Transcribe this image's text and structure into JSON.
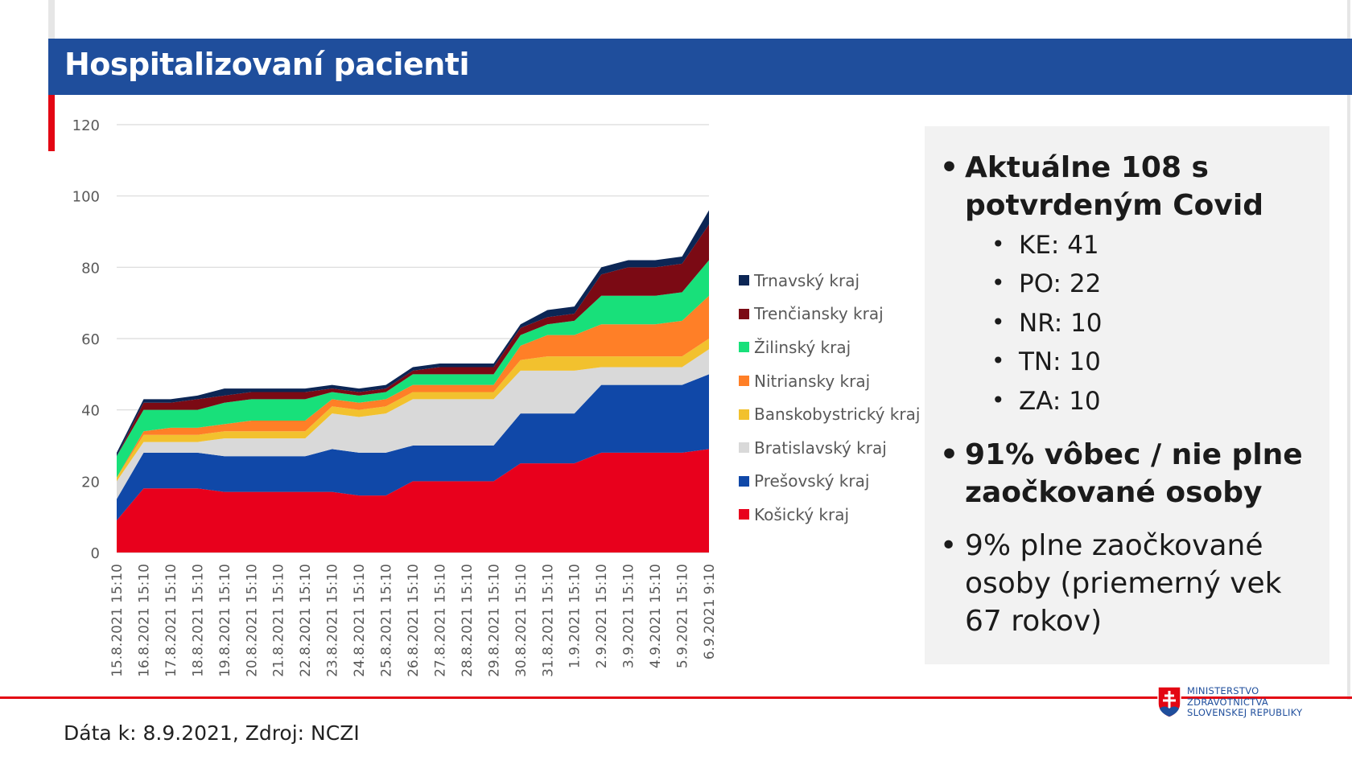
{
  "header": {
    "title": "Hospitalizovaní pacienti"
  },
  "chart_data": {
    "type": "area",
    "stacked": true,
    "ylim": [
      0,
      120
    ],
    "yticks": [
      0,
      20,
      40,
      60,
      80,
      100,
      120
    ],
    "grid": true,
    "legend_position": "right",
    "categories": [
      "15.8.2021 15:10",
      "16.8.2021 15:10",
      "17.8.2021 15:10",
      "18.8.2021 15:10",
      "19.8.2021 15:10",
      "20.8.2021 15:10",
      "21.8.2021 15:10",
      "22.8.2021 15:10",
      "23.8.2021 15:10",
      "24.8.2021 15:10",
      "25.8.2021 15:10",
      "26.8.2021 15:10",
      "27.8.2021 15:10",
      "28.8.2021 15:10",
      "29.8.2021 15:10",
      "30.8.2021 15:10",
      "31.8.2021 15:10",
      "1.9.2021 15:10",
      "2.9.2021 15:10",
      "3.9.2021 15:10",
      "4.9.2021 15:10",
      "5.9.2021 15:10",
      "6.9.2021 9:10"
    ],
    "series": [
      {
        "name": "Košický kraj",
        "color": "#e8001c",
        "values": [
          9,
          18,
          18,
          18,
          17,
          17,
          17,
          17,
          17,
          16,
          16,
          20,
          20,
          20,
          20,
          25,
          25,
          25,
          28,
          28,
          28,
          28,
          29
        ]
      },
      {
        "name": "Prešovský kraj",
        "color": "#1048a8",
        "values": [
          6,
          10,
          10,
          10,
          10,
          10,
          10,
          10,
          12,
          12,
          12,
          10,
          10,
          10,
          10,
          14,
          14,
          14,
          19,
          19,
          19,
          19,
          21
        ]
      },
      {
        "name": "Bratislavský kraj",
        "color": "#d9d9d9",
        "values": [
          5,
          3,
          3,
          3,
          5,
          5,
          5,
          5,
          10,
          10,
          11,
          13,
          13,
          13,
          13,
          12,
          12,
          12,
          5,
          5,
          5,
          5,
          7
        ]
      },
      {
        "name": "Banskobystrický kraj",
        "color": "#f2c12e",
        "values": [
          1,
          2,
          2,
          2,
          2,
          2,
          2,
          2,
          2,
          2,
          2,
          2,
          2,
          2,
          2,
          3,
          4,
          4,
          3,
          3,
          3,
          3,
          3
        ]
      },
      {
        "name": "Nitriansky kraj",
        "color": "#ff7f27",
        "values": [
          0,
          1,
          2,
          2,
          2,
          3,
          3,
          3,
          2,
          2,
          2,
          2,
          2,
          2,
          2,
          4,
          6,
          6,
          9,
          9,
          9,
          10,
          12
        ]
      },
      {
        "name": "Žilinský kraj",
        "color": "#18e07a",
        "values": [
          6,
          6,
          5,
          5,
          6,
          6,
          6,
          6,
          2,
          2,
          2,
          3,
          3,
          3,
          3,
          3,
          3,
          4,
          8,
          8,
          8,
          8,
          10
        ]
      },
      {
        "name": "Trenčiansky kraj",
        "color": "#7b0a14",
        "values": [
          0,
          2,
          2,
          3,
          2,
          2,
          2,
          2,
          1,
          1,
          1,
          1,
          2,
          2,
          2,
          2,
          2,
          2,
          6,
          8,
          8,
          8,
          10
        ]
      },
      {
        "name": "Trnavský kraj",
        "color": "#0c2655",
        "values": [
          1,
          1,
          1,
          1,
          2,
          1,
          1,
          1,
          1,
          1,
          1,
          1,
          1,
          1,
          1,
          1,
          2,
          2,
          2,
          2,
          2,
          2,
          4
        ]
      }
    ]
  },
  "info": {
    "bullet_char": "•",
    "main_bullet": "Aktuálne 108 s potvrdeným Covid",
    "sub_items": [
      "KE: 41",
      "PO: 22",
      "NR: 10",
      "TN: 10",
      "ZA: 10"
    ],
    "vaccinated_none": "91% vôbec / nie plne zaočkované osoby",
    "vaccinated_full": "9% plne zaočkované osoby (priemerný vek 67 rokov)"
  },
  "footer": {
    "source": "Dáta k: 8.9.2021, Zdroj: NCZI"
  },
  "logo": {
    "line1": "MINISTERSTVO",
    "line2": "ZDRAVOTNÍCTVA",
    "line3": "SLOVENSKEJ REPUBLIKY"
  },
  "colors": {
    "header_bg": "#1f4e9c",
    "accent_red": "#e30613",
    "panel_bg": "#f2f2f2"
  }
}
